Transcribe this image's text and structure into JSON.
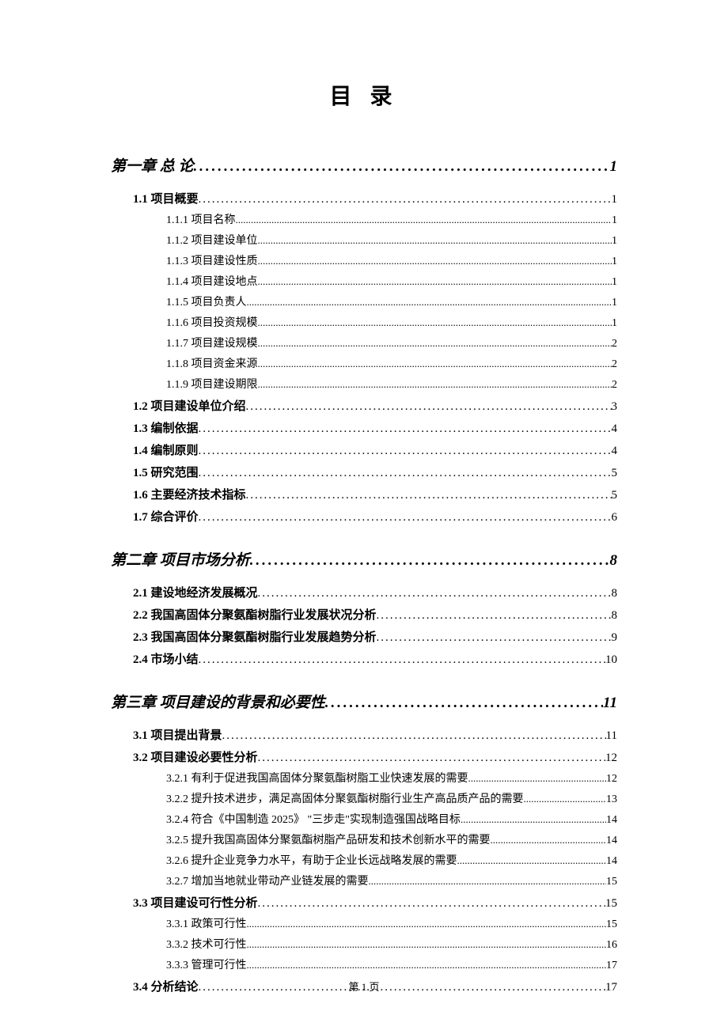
{
  "page_title": "目 录",
  "footer": "第 1 页",
  "dot_char_heavy": ".",
  "dot_char_light": ".",
  "colors": {
    "text": "#000000",
    "background": "#ffffff"
  },
  "entries": [
    {
      "level": 1,
      "label": "第一章 总 论",
      "page": "1"
    },
    {
      "level": 2,
      "label": "1.1 项目概要",
      "page": "1"
    },
    {
      "level": 3,
      "label": "1.1.1 项目名称",
      "page": "1"
    },
    {
      "level": 3,
      "label": "1.1.2 项目建设单位",
      "page": "1"
    },
    {
      "level": 3,
      "label": "1.1.3 项目建设性质",
      "page": "1"
    },
    {
      "level": 3,
      "label": "1.1.4 项目建设地点",
      "page": "1"
    },
    {
      "level": 3,
      "label": "1.1.5 项目负责人",
      "page": "1"
    },
    {
      "level": 3,
      "label": "1.1.6 项目投资规模",
      "page": "1"
    },
    {
      "level": 3,
      "label": "1.1.7 项目建设规模",
      "page": "2"
    },
    {
      "level": 3,
      "label": "1.1.8 项目资金来源",
      "page": "2"
    },
    {
      "level": 3,
      "label": "1.1.9 项目建设期限",
      "page": "2"
    },
    {
      "level": 2,
      "label": "1.2 项目建设单位介绍",
      "page": "3"
    },
    {
      "level": 2,
      "label": "1.3 编制依据",
      "page": "4"
    },
    {
      "level": 2,
      "label": "1.4 编制原则",
      "page": "4"
    },
    {
      "level": 2,
      "label": "1.5 研究范围",
      "page": "5"
    },
    {
      "level": 2,
      "label": "1.6 主要经济技术指标",
      "page": "5"
    },
    {
      "level": 2,
      "label": "1.7 综合评价",
      "page": "6"
    },
    {
      "level": 1,
      "label": "第二章 项目市场分析",
      "page": "8"
    },
    {
      "level": 2,
      "label": "2.1 建设地经济发展概况",
      "page": "8"
    },
    {
      "level": 2,
      "label": "2.2 我国高固体分聚氨酯树脂行业发展状况分析",
      "page": "8"
    },
    {
      "level": 2,
      "label": "2.3 我国高固体分聚氨酯树脂行业发展趋势分析",
      "page": "9"
    },
    {
      "level": 2,
      "label": "2.4 市场小结",
      "page": "10"
    },
    {
      "level": 1,
      "label": "第三章 项目建设的背景和必要性",
      "page": "11"
    },
    {
      "level": 2,
      "label": "3.1 项目提出背景",
      "page": "11"
    },
    {
      "level": 2,
      "label": "3.2 项目建设必要性分析",
      "page": "12"
    },
    {
      "level": 3,
      "label": "3.2.1 有利于促进我国高固体分聚氨酯树脂工业快速发展的需要",
      "page": "12"
    },
    {
      "level": 3,
      "label": "3.2.2 提升技术进步，满足高固体分聚氨酯树脂行业生产高品质产品的需要",
      "page": "13"
    },
    {
      "level": 3,
      "label": "3.2.4 符合《中国制造 2025》 \"三步走\"实现制造强国战略目标",
      "page": "14"
    },
    {
      "level": 3,
      "label": "3.2.5 提升我国高固体分聚氨酯树脂产品研发和技术创新水平的需要",
      "page": "14"
    },
    {
      "level": 3,
      "label": "3.2.6 提升企业竞争力水平，有助于企业长远战略发展的需要",
      "page": "14"
    },
    {
      "level": 3,
      "label": "3.2.7 增加当地就业带动产业链发展的需要",
      "page": "15"
    },
    {
      "level": 2,
      "label": "3.3 项目建设可行性分析",
      "page": "15"
    },
    {
      "level": 3,
      "label": "3.3.1 政策可行性",
      "page": "15"
    },
    {
      "level": 3,
      "label": "3.3.2 技术可行性",
      "page": "16"
    },
    {
      "level": 3,
      "label": "3.3.3 管理可行性",
      "page": "17"
    },
    {
      "level": 2,
      "label": "3.4 分析结论",
      "page": "17"
    }
  ]
}
